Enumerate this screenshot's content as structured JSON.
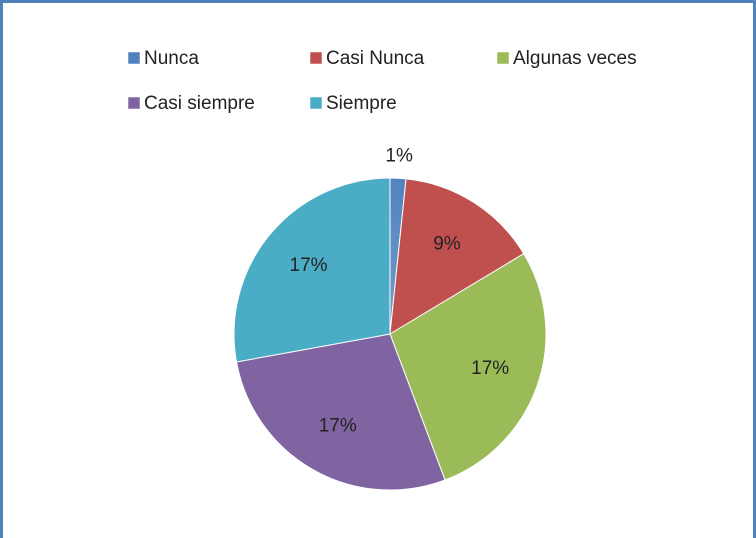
{
  "chart_data": {
    "type": "pie",
    "categories": [
      "Nunca",
      "Casi Nunca",
      "Algunas veces",
      "Casi siempre",
      "Siempre"
    ],
    "values": [
      1,
      9,
      17,
      17,
      17
    ],
    "value_labels": [
      "1%",
      "9%",
      "17%",
      "17%",
      "17%"
    ],
    "colors": [
      "#4f81bd",
      "#c0504d",
      "#9bbb59",
      "#8064a2",
      "#4bacc6"
    ],
    "legend": "top"
  }
}
